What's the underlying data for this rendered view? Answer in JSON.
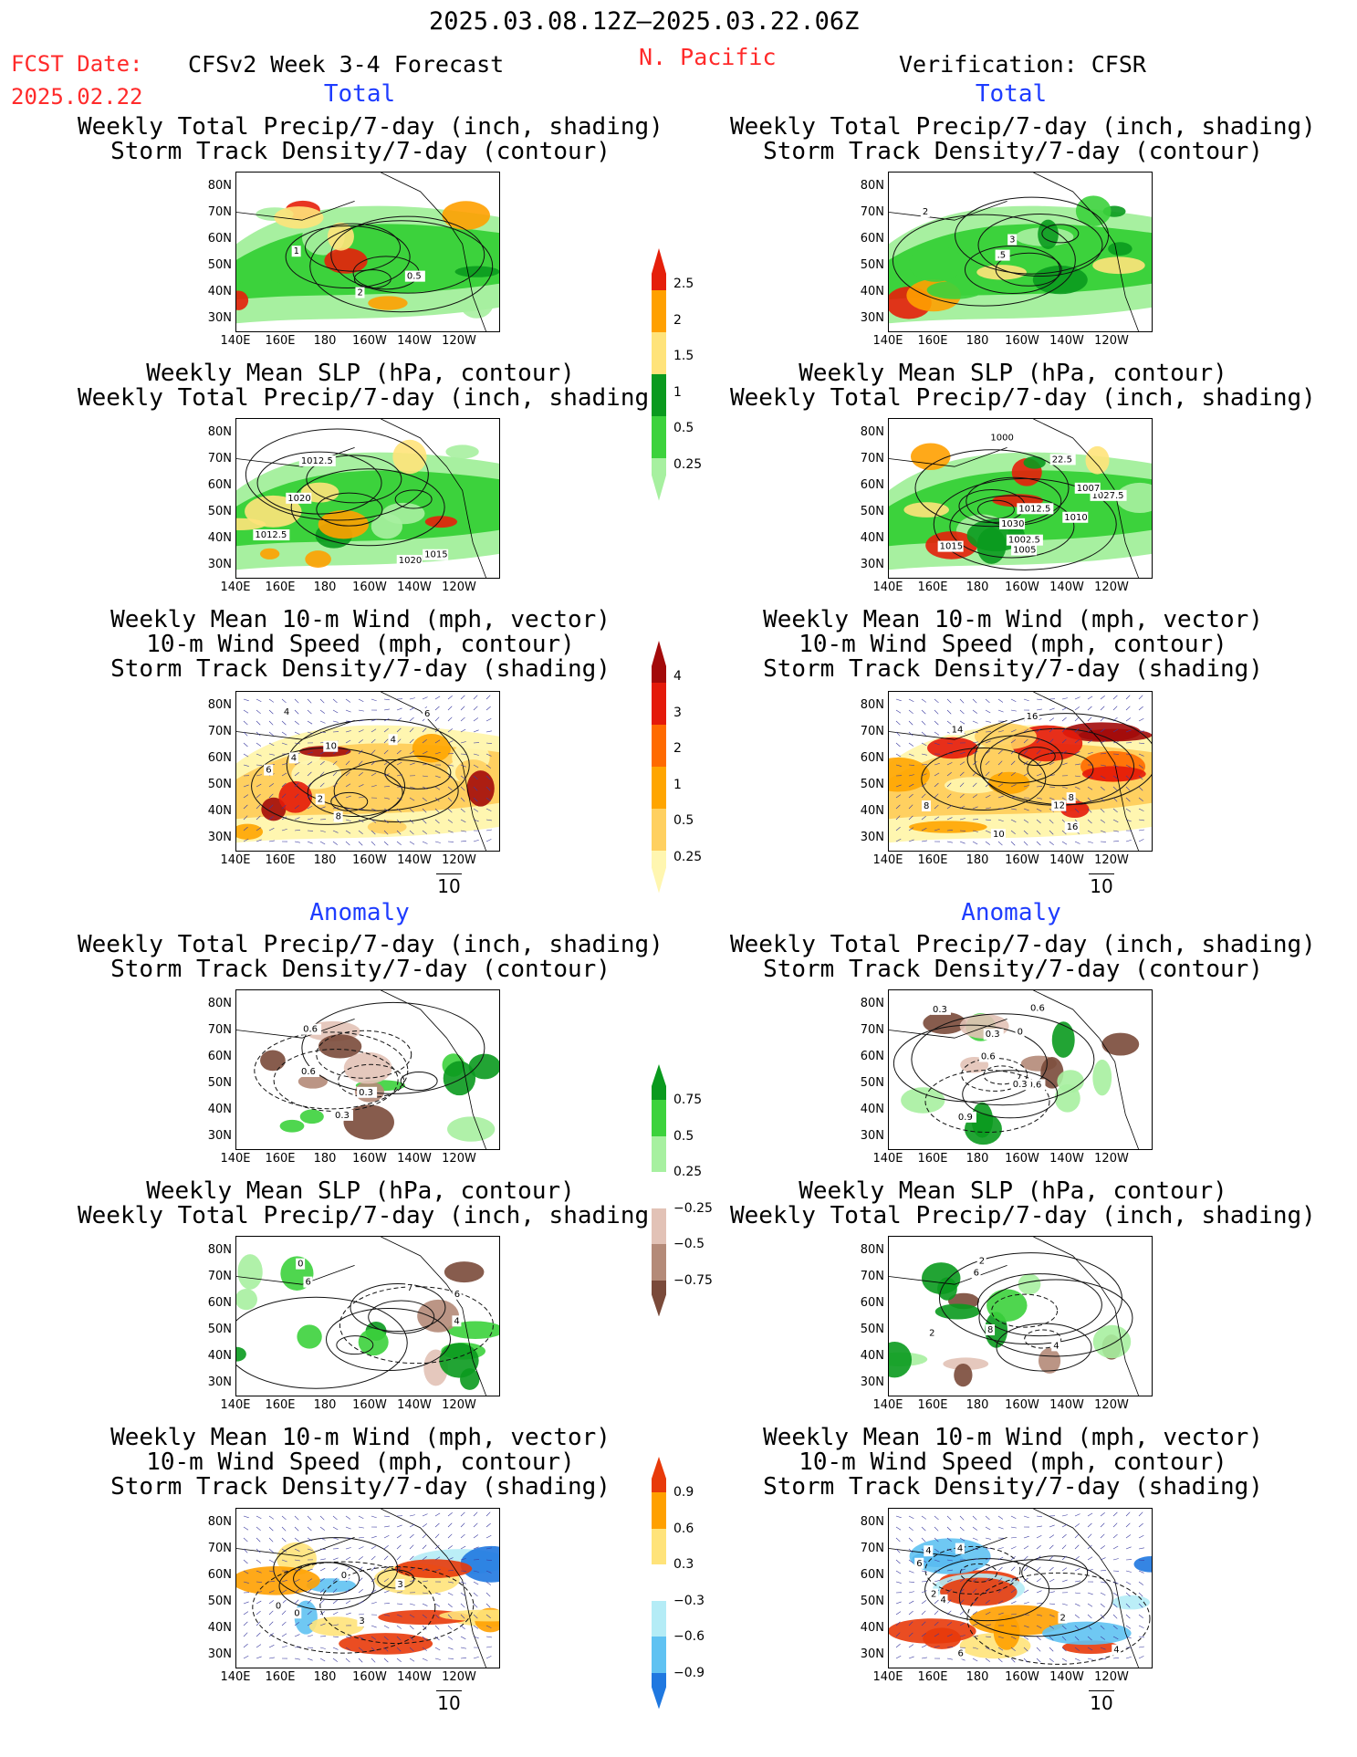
{
  "header": {
    "period": "2025.03.08.12Z–2025.03.22.06Z",
    "fcst_label": "FCST Date:",
    "fcst_date": "2025.02.22",
    "model": "CFSv2 Week 3-4 Forecast",
    "region": "N. Pacific",
    "verification": "Verification: CFSR"
  },
  "sections": {
    "total": "Total",
    "anomaly": "Anomaly"
  },
  "titles": {
    "precip_storm": [
      "Weekly Total Precip/7-day (inch, shading)",
      "Storm Track Density/7-day (contour)"
    ],
    "slp_precip": [
      "Weekly Mean SLP (hPa, contour)",
      "Weekly Total Precip/7-day (inch, shading)"
    ],
    "wind_storm": [
      "Weekly Mean 10-m Wind (mph, vector)",
      "10-m Wind Speed (mph, contour)",
      "Storm Track Density/7-day (shading)"
    ]
  },
  "axes": {
    "lat_ticks": [
      "80N",
      "70N",
      "60N",
      "50N",
      "40N",
      "30N"
    ],
    "lon_ticks": [
      "140E",
      "160E",
      "180",
      "160W",
      "140W",
      "120W"
    ]
  },
  "vector_ref": "10",
  "colorbars": [
    {
      "name": "total-precip",
      "labels": [
        "2.5",
        "2",
        "1.5",
        "1",
        "0.5",
        "0.25"
      ],
      "colors": [
        "#e51f0a",
        "#ffa000",
        "#ffe37a",
        "#0a9a1e",
        "#3cd23c",
        "#a7f0a0"
      ]
    },
    {
      "name": "total-storm",
      "labels": [
        "4",
        "3",
        "2",
        "1",
        "0.5",
        "0.25"
      ],
      "colors": [
        "#a30a0a",
        "#e41a0a",
        "#ff6a00",
        "#ffa500",
        "#ffd060",
        "#fff6b0"
      ]
    },
    {
      "name": "anom-precip",
      "labels": [
        "0.75",
        "0.5",
        "0.25",
        "−0.25",
        "−0.5",
        "−0.75"
      ],
      "colors": [
        "#0a9a1e",
        "#3cd23c",
        "#a7f0a0",
        "#ffffff",
        "#e2c2b6",
        "#b48a78",
        "#7a4a3a"
      ]
    },
    {
      "name": "anom-storm",
      "labels": [
        "0.9",
        "0.6",
        "0.3",
        "−0.3",
        "−0.6",
        "−0.9"
      ],
      "colors": [
        "#e83a0a",
        "#ffa000",
        "#ffe37a",
        "#ffffff",
        "#b4ecf6",
        "#5fc2f2",
        "#1f78e0"
      ]
    }
  ],
  "panels": [
    {
      "id": "fcst-total-precip",
      "col": "fcst",
      "row": 0,
      "labels": [
        "0.5",
        "1",
        "2"
      ]
    },
    {
      "id": "fcst-total-slp",
      "col": "fcst",
      "row": 1,
      "labels": [
        "1020",
        "1012.5",
        "1015",
        "1012.5",
        "1020"
      ]
    },
    {
      "id": "fcst-total-wind",
      "col": "fcst",
      "row": 2,
      "labels": [
        "4",
        "6",
        "4",
        "2",
        "8",
        "10",
        "6",
        "4"
      ]
    },
    {
      "id": "fcst-anom-precip",
      "col": "fcst",
      "row": 3,
      "labels": [
        "0.3",
        "0.6",
        "0.6",
        "0.3"
      ]
    },
    {
      "id": "fcst-anom-slp",
      "col": "fcst",
      "row": 4,
      "labels": [
        "6",
        "0",
        "6",
        "4",
        "7"
      ]
    },
    {
      "id": "fcst-anom-wind",
      "col": "fcst",
      "row": 5,
      "labels": [
        "0",
        "0",
        "3",
        "0",
        "3"
      ]
    },
    {
      "id": "ver-total-precip",
      "col": "ver",
      "row": 0,
      "labels": [
        "3",
        "2",
        ".5"
      ]
    },
    {
      "id": "ver-total-slp",
      "col": "ver",
      "row": 1,
      "labels": [
        "1030",
        "1027.5",
        "1010",
        "22.5",
        "1012.5",
        "1000",
        "1002.5",
        "1005",
        "1007",
        "1015"
      ]
    },
    {
      "id": "ver-total-wind",
      "col": "ver",
      "row": 2,
      "labels": [
        "10",
        "12",
        "8",
        "8",
        "16",
        "14",
        "16"
      ]
    },
    {
      "id": "ver-anom-precip",
      "col": "ver",
      "row": 3,
      "labels": [
        "0",
        "0.3",
        "0.6",
        "0.9",
        "0.6",
        "0.3",
        "0.3",
        "0.6"
      ]
    },
    {
      "id": "ver-anom-slp",
      "col": "ver",
      "row": 4,
      "labels": [
        "8",
        "2",
        "6",
        "4",
        "2"
      ]
    },
    {
      "id": "ver-anom-wind",
      "col": "ver",
      "row": 5,
      "labels": [
        "6",
        "4",
        "6",
        "4",
        "2",
        "4",
        "2",
        "4"
      ]
    }
  ]
}
